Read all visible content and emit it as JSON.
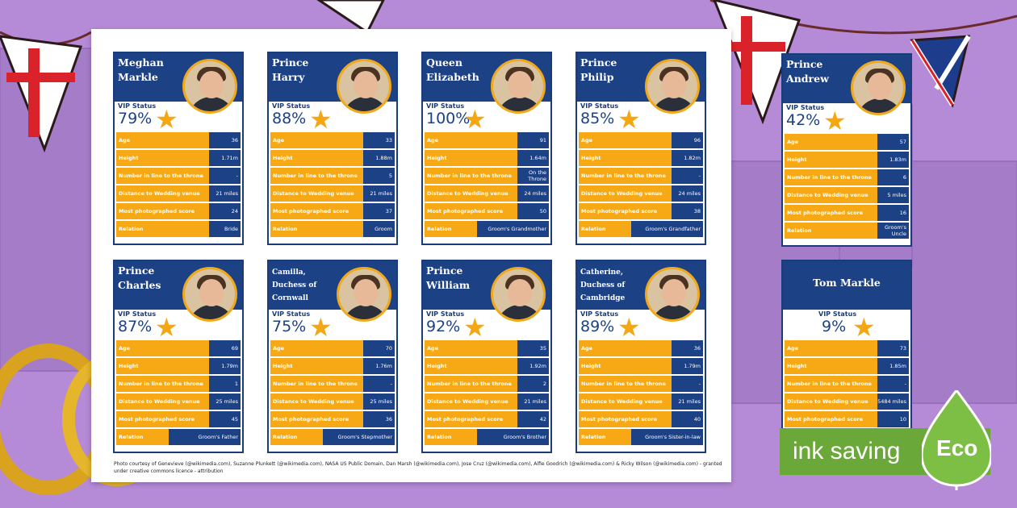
{
  "cards": [
    {
      "name": "Meghan Markle",
      "vip_label": "VIP Status",
      "vip": "79%",
      "rows": [
        [
          "Age",
          "36"
        ],
        [
          "Height",
          "1.71m"
        ],
        [
          "Number in line to the throne",
          "-"
        ],
        [
          "Distance to Wedding venue",
          "21 miles"
        ],
        [
          "Most photographed score",
          "24"
        ],
        [
          "Relation",
          "Bride"
        ]
      ]
    },
    {
      "name": "Prince Harry",
      "vip_label": "VIP Status",
      "vip": "88%",
      "rows": [
        [
          "Age",
          "33"
        ],
        [
          "Height",
          "1.88m"
        ],
        [
          "Number in line to the throne",
          "5"
        ],
        [
          "Distance to Wedding venue",
          "21 miles"
        ],
        [
          "Most photographed score",
          "37"
        ],
        [
          "Relation",
          "Groom"
        ]
      ]
    },
    {
      "name": "Queen Elizabeth",
      "vip_label": "VIP Status",
      "vip": "100%",
      "rows": [
        [
          "Age",
          "91"
        ],
        [
          "Height",
          "1.64m"
        ],
        [
          "Number in line to the throne",
          "On the Throne"
        ],
        [
          "Distance to Wedding venue",
          "24 miles"
        ],
        [
          "Most photographed score",
          "50"
        ],
        [
          "Relation",
          "Groom's Grandmother"
        ]
      ]
    },
    {
      "name": "Prince Philip",
      "vip_label": "VIP Status",
      "vip": "85%",
      "rows": [
        [
          "Age",
          "96"
        ],
        [
          "Height",
          "1.82m"
        ],
        [
          "Number in line to the throne",
          "-"
        ],
        [
          "Distance to Wedding venue",
          "24 miles"
        ],
        [
          "Most photographed score",
          "38"
        ],
        [
          "Relation",
          "Groom's Grandfather"
        ]
      ]
    },
    {
      "name": "Prince Andrew",
      "vip_label": "VIP Status",
      "vip": "42%",
      "rows": [
        [
          "Age",
          "57"
        ],
        [
          "Height",
          "1.83m"
        ],
        [
          "Number in line to the throne",
          "6"
        ],
        [
          "Distance to Wedding venue",
          "5 miles"
        ],
        [
          "Most photographed score",
          "16"
        ],
        [
          "Relation",
          "Groom's Uncle"
        ]
      ]
    },
    {
      "name": "Prince Charles",
      "vip_label": "VIP Status",
      "vip": "87%",
      "rows": [
        [
          "Age",
          "69"
        ],
        [
          "Height",
          "1.79m"
        ],
        [
          "Number in line to the throne",
          "1"
        ],
        [
          "Distance to Wedding venue",
          "25 miles"
        ],
        [
          "Most photographed score",
          "45"
        ],
        [
          "Relation",
          "Groom's Father"
        ]
      ]
    },
    {
      "name": "Camilla, Duchess of Cornwall",
      "vip_label": "VIP Status",
      "vip": "75%",
      "rows": [
        [
          "Age",
          "70"
        ],
        [
          "Height",
          "1.76m"
        ],
        [
          "Number in line to the throne",
          "-"
        ],
        [
          "Distance to Wedding venue",
          "25 miles"
        ],
        [
          "Most photographed score",
          "36"
        ],
        [
          "Relation",
          "Groom's Stepmother"
        ]
      ]
    },
    {
      "name": "Prince William",
      "vip_label": "VIP Status",
      "vip": "92%",
      "rows": [
        [
          "Age",
          "35"
        ],
        [
          "Height",
          "1.92m"
        ],
        [
          "Number in line to the throne",
          "2"
        ],
        [
          "Distance to Wedding venue",
          "21 miles"
        ],
        [
          "Most photographed score",
          "42"
        ],
        [
          "Relation",
          "Groom's Brother"
        ]
      ]
    },
    {
      "name": "Catherine, Duchess of Cambridge",
      "vip_label": "VIP Status",
      "vip": "89%",
      "rows": [
        [
          "Age",
          "36"
        ],
        [
          "Height",
          "1.79m"
        ],
        [
          "Number in line to the throne",
          "-"
        ],
        [
          "Distance to Wedding venue",
          "21 miles"
        ],
        [
          "Most photographed score",
          "40"
        ],
        [
          "Relation",
          "Groom's Sister-in-law"
        ]
      ]
    },
    {
      "name": "Tom Markle",
      "vip_label": "VIP Status",
      "vip": "9%",
      "rows": [
        [
          "Age",
          "73"
        ],
        [
          "Height",
          "1.85m"
        ],
        [
          "Number in line to the throne",
          "-"
        ],
        [
          "Distance to Wedding venue",
          "5484 miles"
        ],
        [
          "Most photographed score",
          "10"
        ]
      ]
    }
  ],
  "credits": "Photo courtesy of Genevieve (@wikimedia.com), Suzanne Plunkett (@wikimedia.com), NASA US Public Domain, Dan Marsh (@wikimedia.com), Jose Cruz (@wikimedia.com), Alfie Goodrich (@wikimedia.com) & Ricky Wilson (@wikimedia.com) - granted under creative commons licence - attribution",
  "eco": {
    "label": "ink saving",
    "badge": "Eco"
  },
  "colors": {
    "card_header": "#1d4185",
    "row_label": "#f6a914",
    "star": "#f5a712",
    "background": "#b58ad6",
    "eco": "#6aa83a"
  }
}
